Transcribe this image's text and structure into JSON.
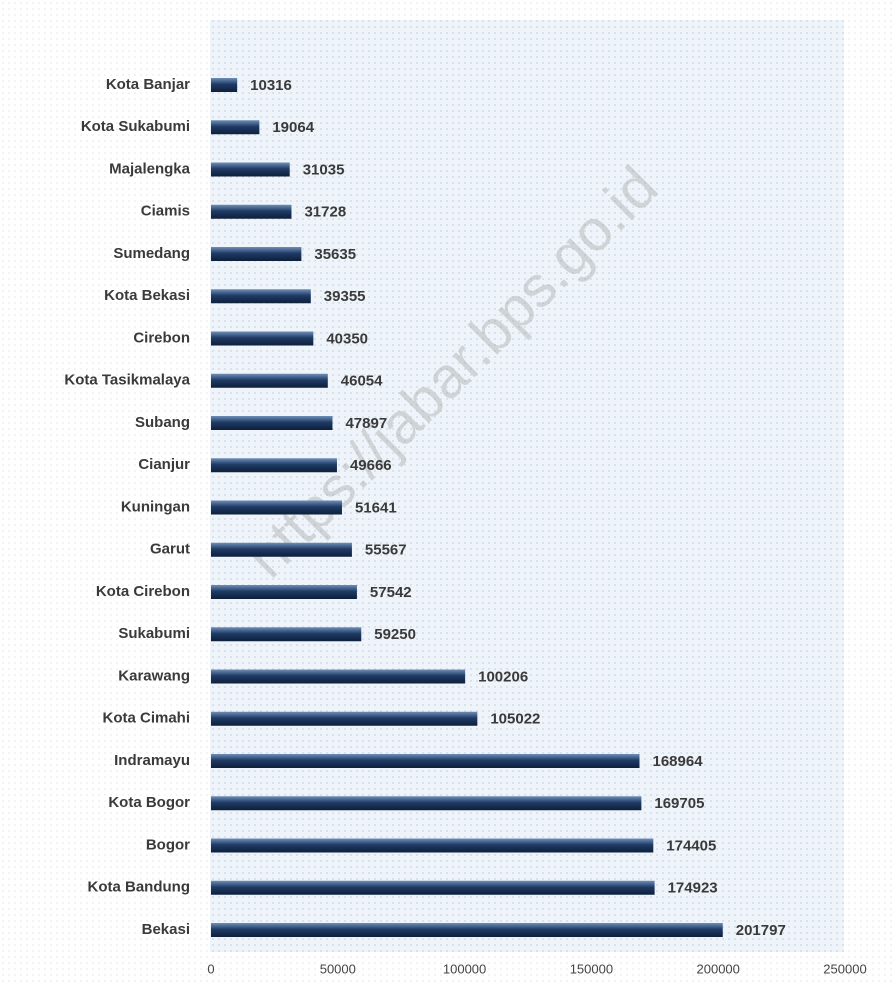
{
  "chart_data": {
    "type": "barh",
    "watermark": "https://jabar.bps.go.id",
    "categories": [
      "Kota Banjar",
      "Kota Sukabumi",
      "Majalengka",
      "Ciamis",
      "Sumedang",
      "Kota Bekasi",
      "Cirebon",
      "Kota Tasikmalaya",
      "Subang",
      "Cianjur",
      "Kuningan",
      "Garut",
      "Kota Cirebon",
      "Sukabumi",
      "Karawang",
      "Kota Cimahi",
      "Indramayu",
      "Kota Bogor",
      "Bogor",
      "Kota Bandung",
      "Bekasi"
    ],
    "values": [
      10316,
      19064,
      31035,
      31728,
      35635,
      39355,
      40350,
      46054,
      47897,
      49666,
      51641,
      55567,
      57542,
      59250,
      100206,
      105022,
      168964,
      169705,
      174405,
      174923,
      201797
    ],
    "color": "#1f3b66",
    "xlim": [
      0,
      250000
    ],
    "xticks": [
      0,
      50000,
      100000,
      150000,
      200000,
      250000
    ],
    "grid": false
  }
}
